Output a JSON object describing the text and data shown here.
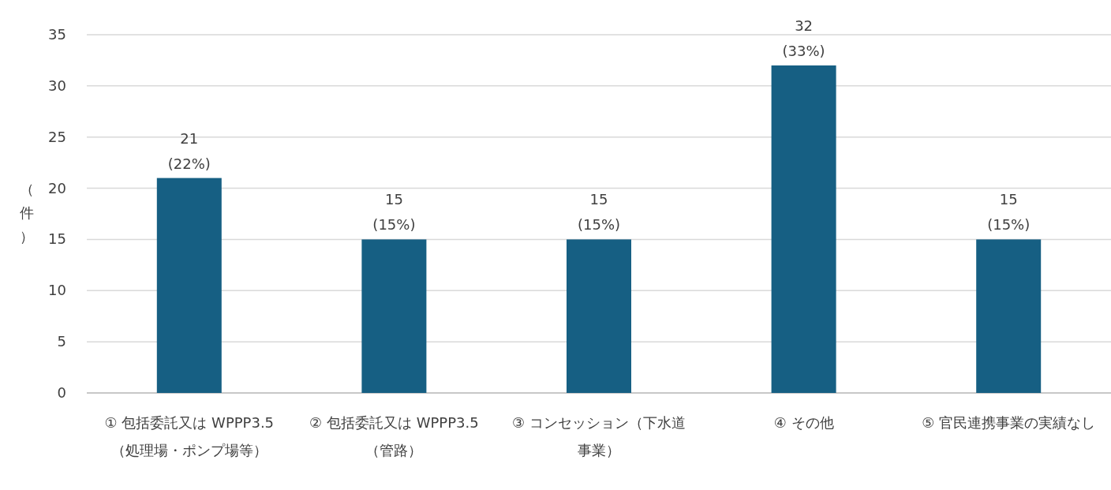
{
  "chart_data": {
    "type": "bar",
    "ylabel": "（件）",
    "categories": [
      "① 包括委託又は WPPP3.5（処理場・ポンプ場等）",
      "② 包括委託又は WPPP3.5（管路）",
      "③ コンセッション（下水道事業）",
      "④ その他",
      "⑤ 官民連携事業の実績なし"
    ],
    "values": [
      21,
      15,
      15,
      32,
      15
    ],
    "value_labels": [
      "21 (22%)",
      "15 (15%)",
      "15 (15%)",
      "32 (33%)",
      "15 (15%)"
    ],
    "color": "#165f83",
    "ylim": [
      0,
      35
    ],
    "yticks": [
      0,
      5,
      10,
      15,
      20,
      25,
      30,
      35
    ],
    "grid": "y"
  }
}
